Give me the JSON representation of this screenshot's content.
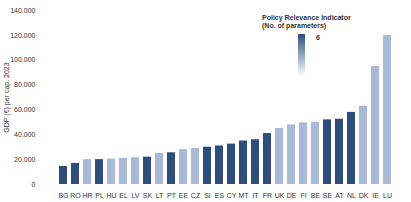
{
  "chart_data": {
    "type": "bar",
    "y_label": "GDP (€) per cap. 2023",
    "categories": [
      "BG",
      "RO",
      "HR",
      "PL",
      "HU",
      "EL",
      "LV",
      "SK",
      "LT",
      "PT",
      "EE",
      "CZ",
      "SI",
      "ES",
      "CY",
      "MT",
      "IT",
      "FR",
      "UK",
      "DE",
      "FI",
      "BE",
      "SE",
      "AT",
      "NL",
      "DK",
      "IE",
      "LU"
    ],
    "values": [
      14500,
      17000,
      20000,
      20000,
      20500,
      21000,
      21500,
      22000,
      25000,
      25500,
      28000,
      29000,
      30000,
      31000,
      32500,
      35000,
      36000,
      41000,
      45000,
      48000,
      49500,
      50000,
      52000,
      52500,
      58000,
      63000,
      95000,
      120000
    ],
    "colors": [
      "#2e4d7c",
      "#2e4d7c",
      "#a9b9d8",
      "#2e4d7c",
      "#a9b9d8",
      "#a9b9d8",
      "#a9b9d8",
      "#2e4d7c",
      "#a9b9d8",
      "#2e4d7c",
      "#a9b9d8",
      "#a9b9d8",
      "#2e4d7c",
      "#2e4d7c",
      "#2e4d7c",
      "#2e4d7c",
      "#2e4d7c",
      "#2e4d7c",
      "#a9b9d8",
      "#a9b9d8",
      "#a9b9d8",
      "#a9b9d8",
      "#2e4d7c",
      "#2e4d7c",
      "#2e4d7c",
      "#a9b9d8",
      "#a9b9d8",
      "#a9b9d8"
    ],
    "ylim": [
      0,
      140000
    ],
    "yticks": [
      0,
      {
        "value": 20000,
        "label": "20.000"
      },
      {
        "value": 40000,
        "label": "40.000"
      },
      {
        "value": 60000,
        "label": "60.000"
      },
      {
        "value": 80000,
        "label": "80.000"
      },
      {
        "value": 100000,
        "label": "100.000"
      },
      {
        "value": 120000,
        "label": "120.000"
      },
      {
        "value": 140000,
        "label": "140.000"
      }
    ],
    "grid": false,
    "colorbar": {
      "label": "Policy Relevance Indicator (No. of parameters)",
      "ticks": [
        6
      ]
    }
  }
}
